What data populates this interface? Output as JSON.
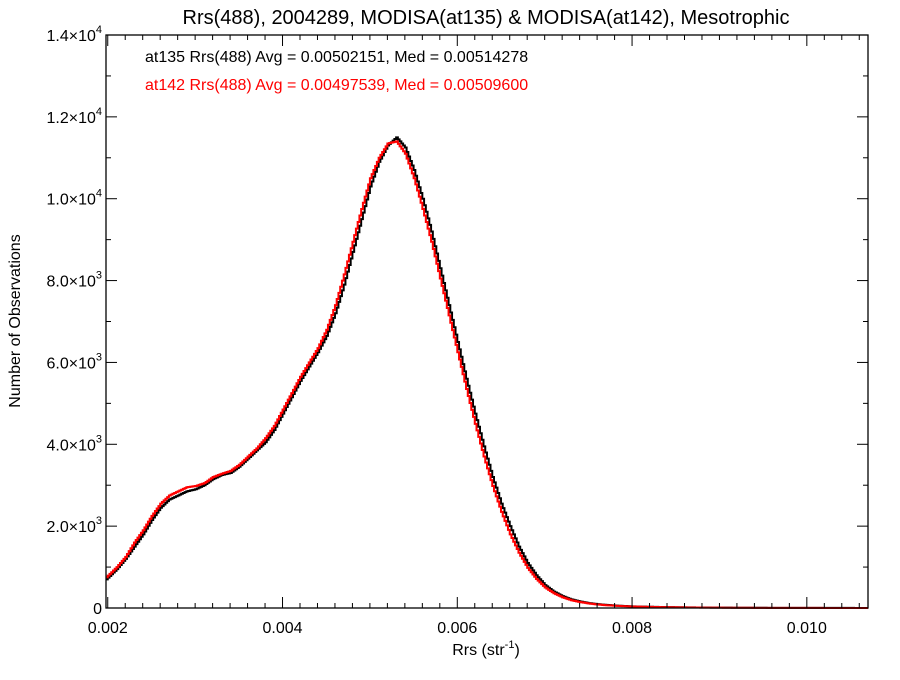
{
  "chart_data": {
    "type": "line",
    "title": "Rrs(488), 2004289, MODISA(at135) & MODISA(at142), Mesotrophic",
    "xlabel": "Rrs (str",
    "xlabel_sup": "-1",
    "xlabel_close": ")",
    "ylabel": "Number of Observations",
    "xlim": [
      0.00198,
      0.0107
    ],
    "ylim": [
      0,
      14000
    ],
    "grid": false,
    "legend_position": "top-left",
    "x_ticks": [
      {
        "value": 0.002,
        "label": "0.002"
      },
      {
        "value": 0.004,
        "label": "0.004"
      },
      {
        "value": 0.006,
        "label": "0.006"
      },
      {
        "value": 0.008,
        "label": "0.008"
      },
      {
        "value": 0.01,
        "label": "0.010"
      }
    ],
    "y_ticks": [
      {
        "value": 0,
        "base": "0",
        "exp": ""
      },
      {
        "value": 2000,
        "base": "2.0×10",
        "exp": "3"
      },
      {
        "value": 4000,
        "base": "4.0×10",
        "exp": "3"
      },
      {
        "value": 6000,
        "base": "6.0×10",
        "exp": "3"
      },
      {
        "value": 8000,
        "base": "8.0×10",
        "exp": "3"
      },
      {
        "value": 10000,
        "base": "1.0×10",
        "exp": "4"
      },
      {
        "value": 12000,
        "base": "1.2×10",
        "exp": "4"
      },
      {
        "value": 14000,
        "base": "1.4×10",
        "exp": "4"
      }
    ],
    "annotations": [
      {
        "text": "at135 Rrs(488) Avg = 0.00502151, Med = 0.00514278",
        "color": "#000000"
      },
      {
        "text": "at142 Rrs(488) Avg = 0.00497539, Med = 0.00509600",
        "color": "#ff0000"
      }
    ],
    "series": [
      {
        "color": "#000000",
        "x": [
          0.00198,
          0.0021,
          0.0022,
          0.0023,
          0.0024,
          0.0025,
          0.0026,
          0.0027,
          0.0028,
          0.0029,
          0.003,
          0.0031,
          0.0032,
          0.0033,
          0.0034,
          0.0035,
          0.0036,
          0.0037,
          0.0038,
          0.0039,
          0.004,
          0.0041,
          0.0042,
          0.0043,
          0.0044,
          0.0045,
          0.0046,
          0.0047,
          0.0048,
          0.0049,
          0.005,
          0.0051,
          0.0052,
          0.0053,
          0.0054,
          0.0055,
          0.0056,
          0.0057,
          0.0058,
          0.0059,
          0.006,
          0.0061,
          0.0062,
          0.0063,
          0.0064,
          0.0065,
          0.0066,
          0.0067,
          0.0068,
          0.0069,
          0.007,
          0.0071,
          0.0072,
          0.0073,
          0.0074,
          0.0075,
          0.0076,
          0.0077,
          0.0078,
          0.0079,
          0.008,
          0.0082,
          0.0084,
          0.0086,
          0.0088,
          0.009,
          0.0093,
          0.0096,
          0.01,
          0.0104,
          0.0107
        ],
        "y": [
          700,
          950,
          1200,
          1500,
          1800,
          2150,
          2450,
          2650,
          2750,
          2850,
          2900,
          3000,
          3150,
          3250,
          3300,
          3450,
          3650,
          3850,
          4050,
          4350,
          4750,
          5150,
          5550,
          5900,
          6250,
          6650,
          7200,
          7900,
          8700,
          9500,
          10300,
          10900,
          11300,
          11500,
          11250,
          10700,
          10000,
          9200,
          8300,
          7400,
          6500,
          5600,
          4750,
          3950,
          3200,
          2550,
          2000,
          1500,
          1100,
          800,
          560,
          400,
          290,
          210,
          160,
          120,
          95,
          75,
          60,
          50,
          40,
          30,
          22,
          16,
          12,
          9,
          6,
          4,
          3,
          2,
          1
        ]
      },
      {
        "color": "#ff0000",
        "x": [
          0.00198,
          0.0021,
          0.0022,
          0.0023,
          0.0024,
          0.0025,
          0.0026,
          0.0027,
          0.0028,
          0.0029,
          0.003,
          0.0031,
          0.0032,
          0.0033,
          0.0034,
          0.0035,
          0.0036,
          0.0037,
          0.0038,
          0.0039,
          0.004,
          0.0041,
          0.0042,
          0.0043,
          0.0044,
          0.0045,
          0.0046,
          0.0047,
          0.0048,
          0.0049,
          0.005,
          0.0051,
          0.0052,
          0.0053,
          0.0054,
          0.0055,
          0.0056,
          0.0057,
          0.0058,
          0.0059,
          0.006,
          0.0061,
          0.0062,
          0.0063,
          0.0064,
          0.0065,
          0.0066,
          0.0067,
          0.0068,
          0.0069,
          0.007,
          0.0071,
          0.0072,
          0.0073,
          0.0074,
          0.0075,
          0.0076,
          0.0077,
          0.0078,
          0.0079,
          0.008,
          0.0082,
          0.0084,
          0.0086,
          0.0088,
          0.009,
          0.0093,
          0.0096,
          0.01,
          0.0104,
          0.0107
        ],
        "y": [
          750,
          1000,
          1250,
          1600,
          1900,
          2250,
          2550,
          2750,
          2850,
          2950,
          2980,
          3050,
          3200,
          3280,
          3350,
          3500,
          3700,
          3900,
          4150,
          4450,
          4850,
          5250,
          5650,
          6000,
          6350,
          6800,
          7400,
          8150,
          8950,
          9750,
          10500,
          11000,
          11350,
          11400,
          11100,
          10500,
          9750,
          8950,
          8050,
          7150,
          6250,
          5350,
          4500,
          3700,
          2980,
          2350,
          1800,
          1350,
          980,
          710,
          500,
          360,
          260,
          190,
          145,
          110,
          85,
          68,
          55,
          45,
          36,
          27,
          20,
          14,
          10,
          8,
          5,
          3,
          2,
          1,
          1
        ]
      }
    ]
  }
}
